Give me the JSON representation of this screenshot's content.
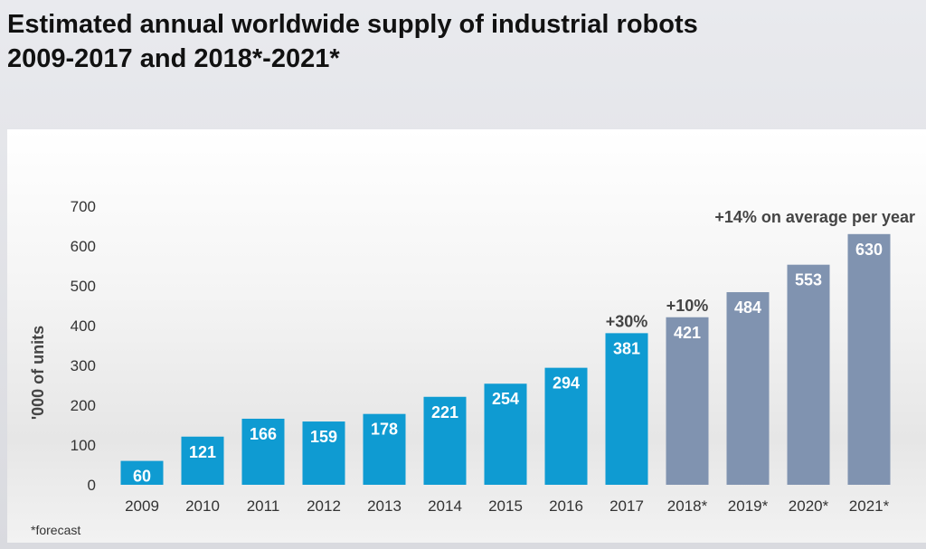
{
  "title_line1": "Estimated annual worldwide supply of industrial robots",
  "title_line2": "2009-2017 and 2018*-2021*",
  "footnote": "*forecast",
  "colors": {
    "actual": "#0f9bd2",
    "forecast": "#8093b0"
  },
  "chart_data": {
    "type": "bar",
    "title": "Estimated annual worldwide supply of industrial robots 2009-2017 and 2018*-2021*",
    "xlabel": "",
    "ylabel": "'000 of units",
    "ylim": [
      0,
      700
    ],
    "yticks": [
      0,
      100,
      200,
      300,
      400,
      500,
      600,
      700
    ],
    "grid": false,
    "categories": [
      "2009",
      "2010",
      "2011",
      "2012",
      "2013",
      "2014",
      "2015",
      "2016",
      "2017",
      "2018*",
      "2019*",
      "2020*",
      "2021*"
    ],
    "values": [
      60,
      121,
      166,
      159,
      178,
      221,
      254,
      294,
      381,
      421,
      484,
      553,
      630
    ],
    "forecast": [
      false,
      false,
      false,
      false,
      false,
      false,
      false,
      false,
      false,
      true,
      true,
      true,
      true
    ],
    "annotations": [
      {
        "text": "+30%",
        "category": "2017"
      },
      {
        "text": "+10%",
        "category": "2018*"
      },
      {
        "text": "+14% on average per year",
        "category": "2021*"
      }
    ]
  }
}
